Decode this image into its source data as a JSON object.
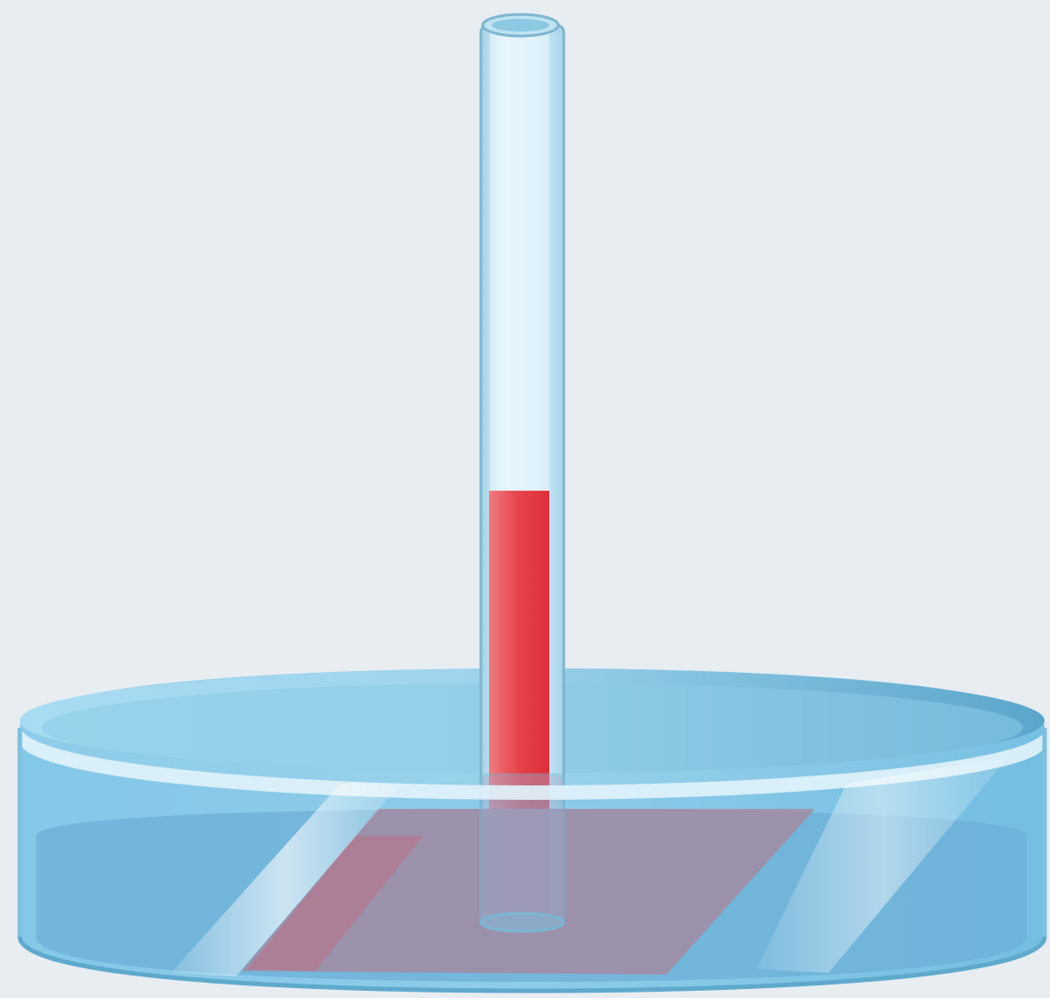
{
  "scene": {
    "items": [
      "capillary-tube",
      "liquid-column",
      "petri-dish",
      "dish-liquid"
    ],
    "capillary_liquid_fill_fraction": 0.485
  },
  "colors": {
    "background": "#e8edf2",
    "glass": "#bfe6f5",
    "glass_edge": "#7fb6cf",
    "liquid": "#e63a44",
    "dish_liquid": "#6faed6"
  }
}
